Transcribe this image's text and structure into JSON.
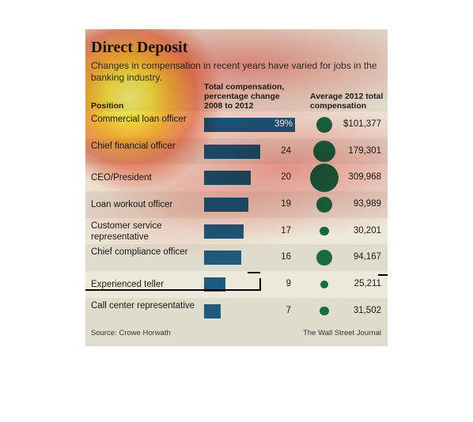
{
  "title": "Direct Deposit",
  "subtitle": "Changes in compensation in recent years have varied for jobs in the banking industry.",
  "columns": {
    "position": "Position",
    "pct_change": "Total compensation, percentage change 2008 to 2012",
    "avg_comp": "Average 2012 total compensation"
  },
  "source": "Source: Crowe Horwath",
  "credit": "The Wall Street Journal",
  "colors": {
    "bar": "#1c5b7f",
    "dot": "#1a6a43",
    "background": "#e0dccd",
    "band": "#ece8da"
  },
  "chart_data": {
    "type": "bar",
    "categories": [
      "Commercial loan officer",
      "Chief financial officer",
      "CEO/President",
      "Loan workout officer",
      "Customer service representative",
      "Chief compliance officer",
      "Experienced teller",
      "Call center representative"
    ],
    "series": [
      {
        "values": [
          39,
          24,
          20,
          19,
          17,
          16,
          9,
          7
        ],
        "labels": [
          "39%",
          "24",
          "20",
          "19",
          "17",
          "16",
          "9",
          "7"
        ]
      },
      {
        "values": [
          101377,
          179301,
          309968,
          93989,
          30201,
          94167,
          25211,
          31502
        ],
        "labels": [
          "$101,377",
          "179,301",
          "309,968",
          "93,989",
          "30,201",
          "94,167",
          "25,211",
          "31,502"
        ]
      }
    ]
  }
}
